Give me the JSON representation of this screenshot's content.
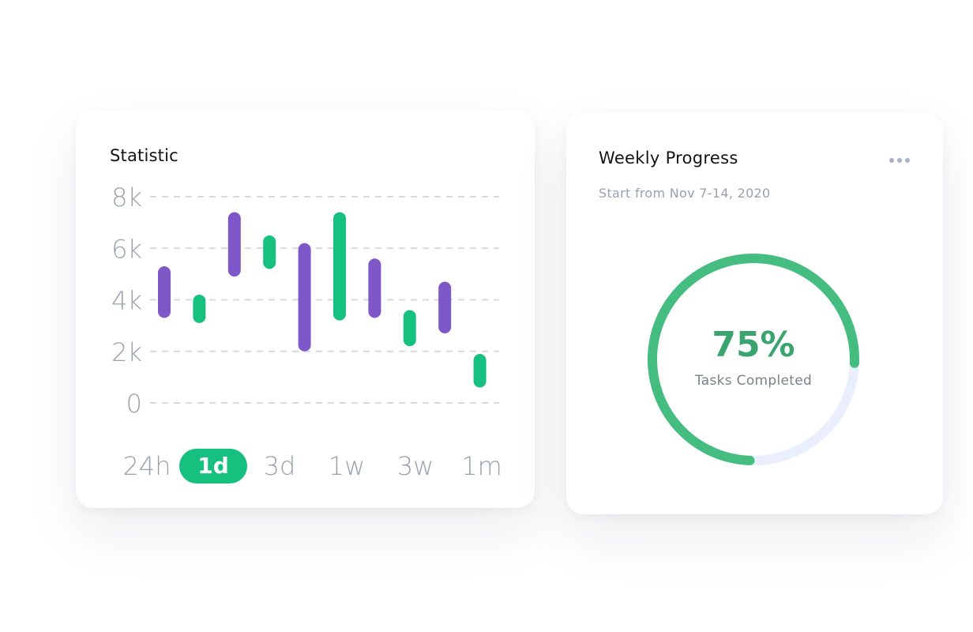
{
  "statistic": {
    "title": "Statistic",
    "y_ticks": [
      "0",
      "2k",
      "4k",
      "6k",
      "8k"
    ],
    "ranges": [
      "24h",
      "1d",
      "3d",
      "1w",
      "3w",
      "1m"
    ],
    "active_range": "1d",
    "colors": {
      "purple": "#7e57c8",
      "green": "#16c07e",
      "grid": "#d6d9df",
      "active_tab": "#16c07e"
    },
    "chart_data": {
      "type": "bar",
      "ylim": [
        0,
        8000
      ],
      "grid": true,
      "bars": [
        {
          "low": 3300,
          "high": 5300,
          "color": "purple"
        },
        {
          "low": 3100,
          "high": 4200,
          "color": "green"
        },
        {
          "low": 4900,
          "high": 7400,
          "color": "purple"
        },
        {
          "low": 5200,
          "high": 6500,
          "color": "green"
        },
        {
          "low": 2000,
          "high": 6200,
          "color": "purple"
        },
        {
          "low": 3200,
          "high": 7400,
          "color": "green"
        },
        {
          "low": 3300,
          "high": 5600,
          "color": "purple"
        },
        {
          "low": 2200,
          "high": 3600,
          "color": "green"
        },
        {
          "low": 2700,
          "high": 4700,
          "color": "purple"
        },
        {
          "low": 600,
          "high": 1900,
          "color": "green"
        }
      ]
    }
  },
  "weekly": {
    "title": "Weekly Progress",
    "subtitle": "Start from Nov 7-14, 2020",
    "menu_icon": "more-horizontal-icon",
    "progress": 0.75,
    "percent_label": "75%",
    "caption": "Tasks Completed",
    "colors": {
      "progress": "#46bd80",
      "track": "#e9effc",
      "percent": "#3aa46e"
    }
  }
}
